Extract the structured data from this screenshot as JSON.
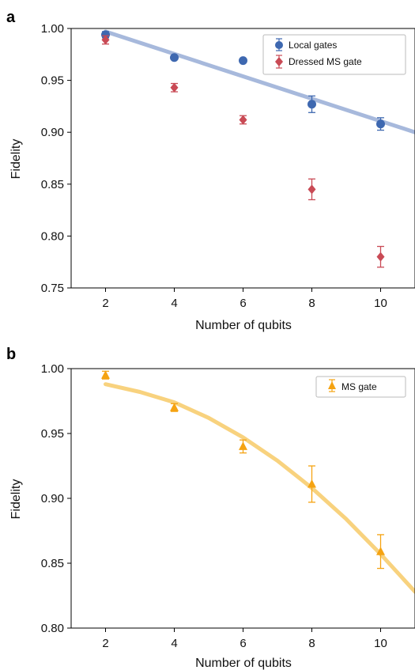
{
  "chart_data": [
    {
      "type": "scatter",
      "panel_label": "a",
      "xlabel": "Number of qubits",
      "ylabel": "Fidelity",
      "xlim": [
        1,
        11
      ],
      "ylim": [
        0.75,
        1.0
      ],
      "xticks": [
        2,
        4,
        6,
        8,
        10
      ],
      "yticks": [
        0.75,
        0.8,
        0.85,
        0.9,
        0.95,
        1.0
      ],
      "ytick_labels": [
        "0.75",
        "0.80",
        "0.85",
        "0.90",
        "0.95",
        "1.00"
      ],
      "legend_position": "top-right",
      "series": [
        {
          "name": "Local gates",
          "marker": "circle",
          "color": "#3e68b0",
          "x": [
            2,
            4,
            6,
            8,
            10
          ],
          "y": [
            0.994,
            0.972,
            0.969,
            0.927,
            0.908
          ],
          "err": [
            0.003,
            0.002,
            0.002,
            0.008,
            0.006
          ]
        },
        {
          "name": "Dressed MS gate",
          "marker": "diamond",
          "color": "#c94a55",
          "x": [
            2,
            4,
            6,
            8,
            10
          ],
          "y": [
            0.989,
            0.943,
            0.912,
            0.845,
            0.78
          ],
          "err": [
            0.004,
            0.004,
            0.004,
            0.01,
            0.01
          ]
        }
      ],
      "fit": {
        "kind": "line",
        "color": "#a7b9dc",
        "x": [
          2,
          11
        ],
        "y": [
          0.997,
          0.9
        ]
      }
    },
    {
      "type": "scatter",
      "panel_label": "b",
      "xlabel": "Number of qubits",
      "ylabel": "Fidelity",
      "xlim": [
        1,
        11
      ],
      "ylim": [
        0.8,
        1.0
      ],
      "xticks": [
        2,
        4,
        6,
        8,
        10
      ],
      "yticks": [
        0.8,
        0.85,
        0.9,
        0.95,
        1.0
      ],
      "ytick_labels": [
        "0.80",
        "0.85",
        "0.90",
        "0.95",
        "1.00"
      ],
      "legend_position": "top-right",
      "series": [
        {
          "name": "MS gate",
          "marker": "triangle",
          "color": "#f5a312",
          "x": [
            2,
            4,
            6,
            8,
            10
          ],
          "y": [
            0.995,
            0.97,
            0.94,
            0.911,
            0.859
          ],
          "err": [
            0.003,
            0.003,
            0.005,
            0.014,
            0.013
          ]
        }
      ],
      "fit": {
        "kind": "curve",
        "color": "#f8d27e",
        "x": [
          2,
          3,
          4,
          5,
          6,
          7,
          8,
          9,
          10,
          11
        ],
        "y": [
          0.988,
          0.982,
          0.974,
          0.962,
          0.947,
          0.929,
          0.908,
          0.884,
          0.857,
          0.828
        ]
      }
    }
  ]
}
